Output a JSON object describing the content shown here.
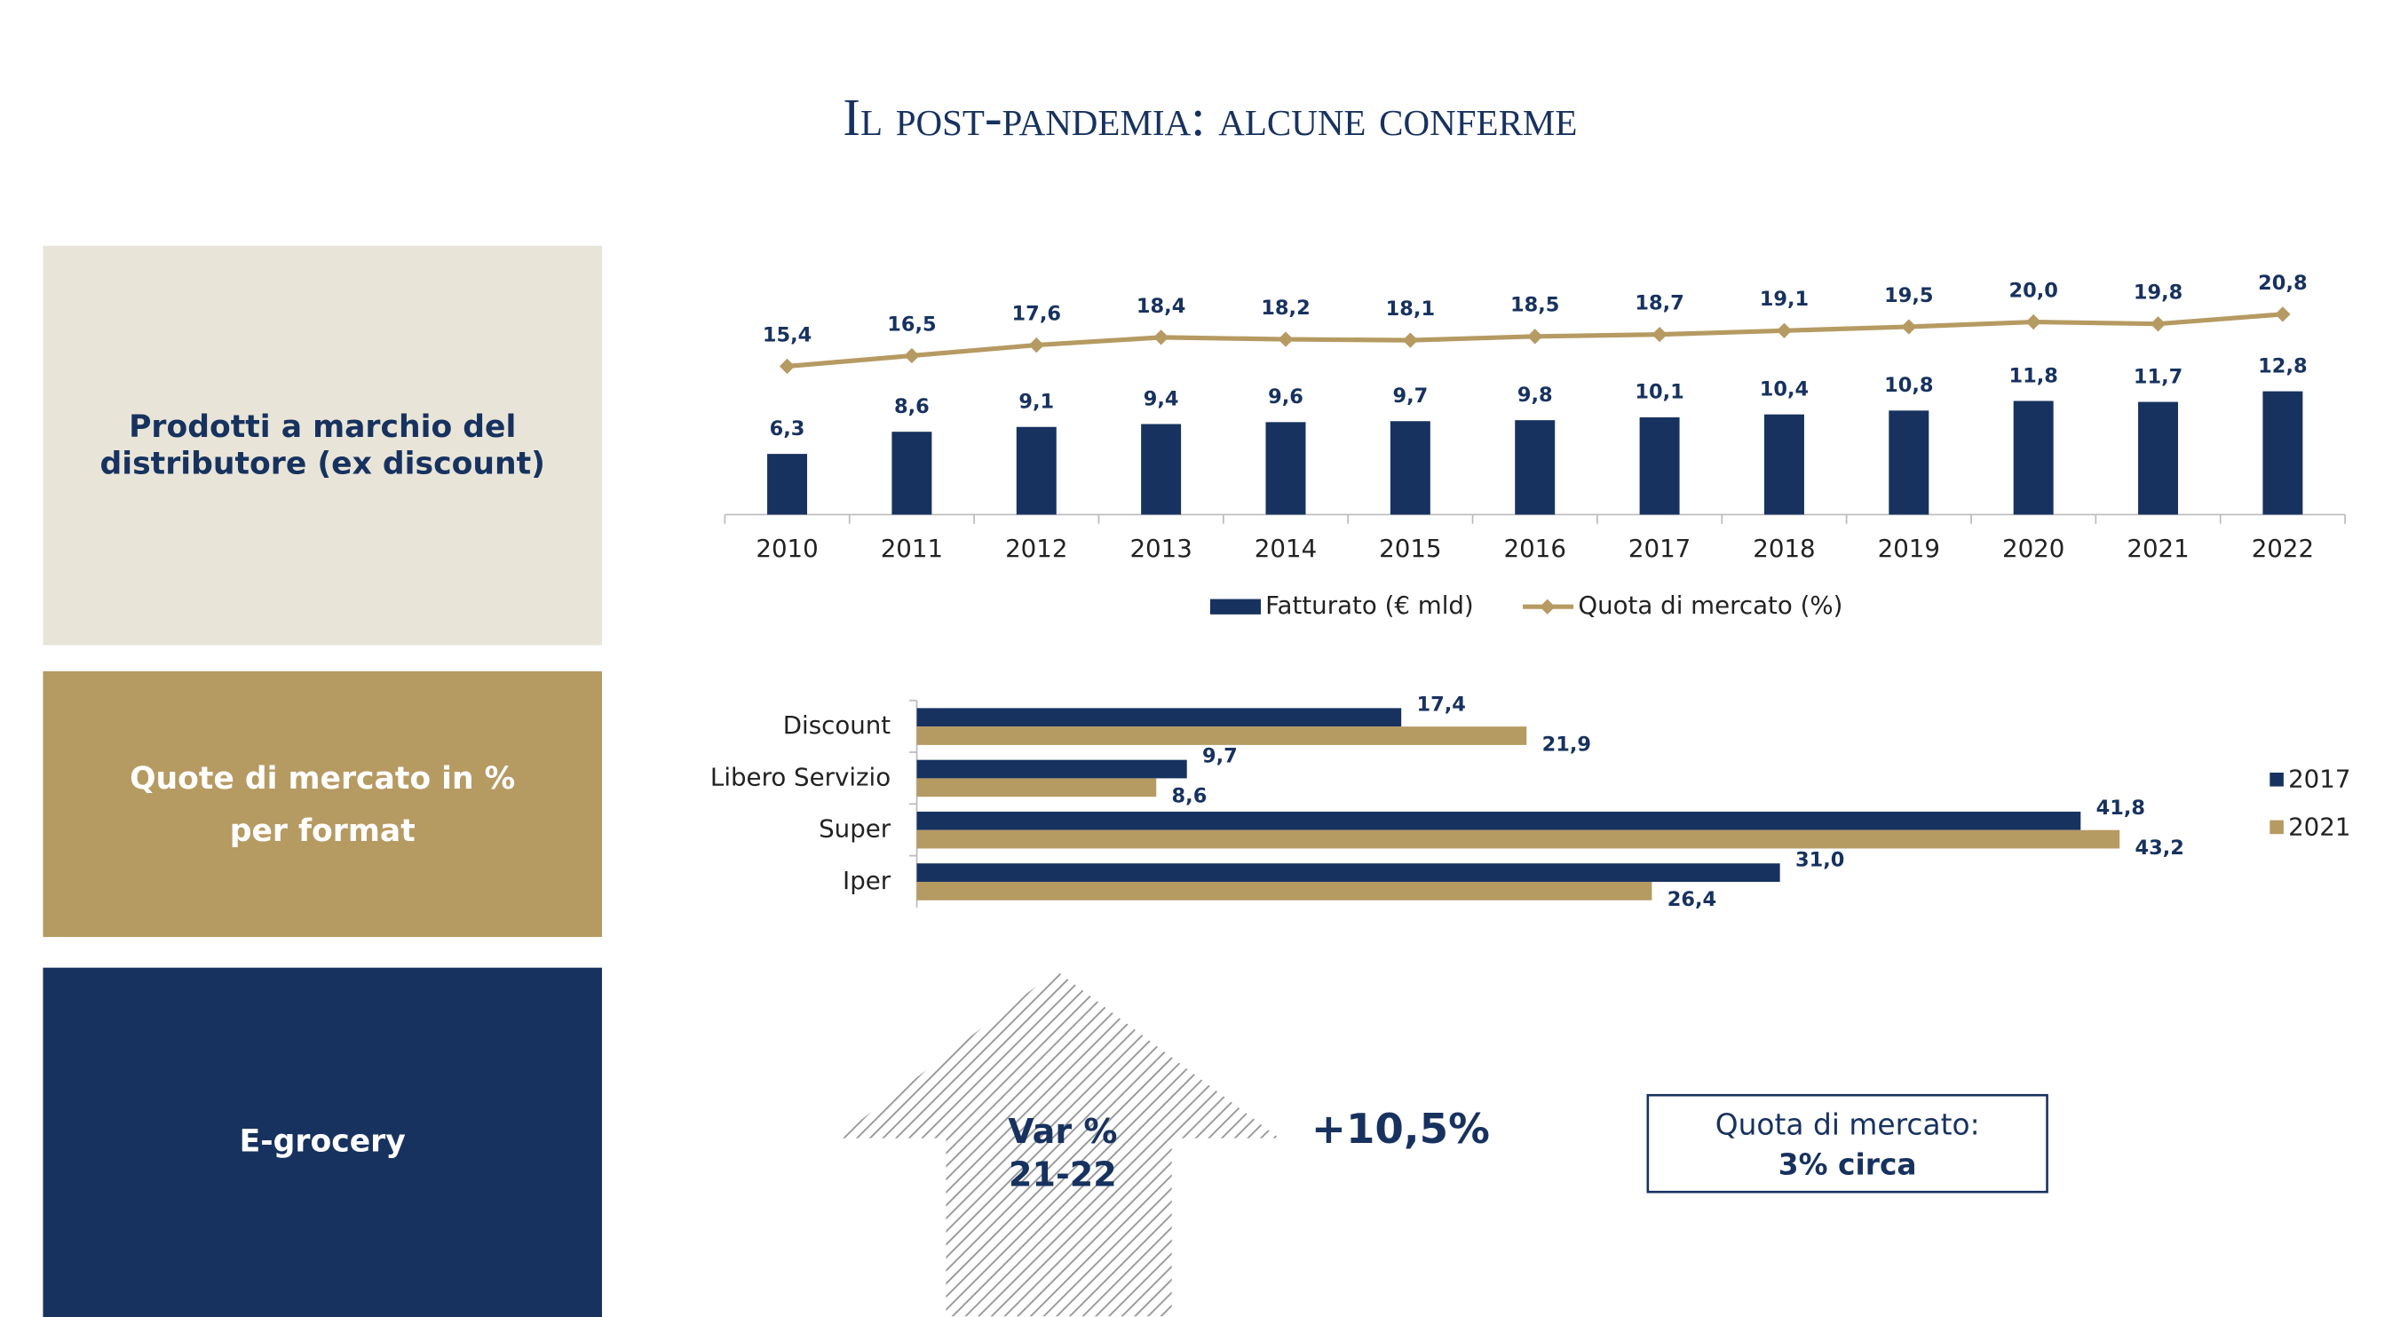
{
  "title": "Il post-pandemia: alcune conferme",
  "panels": [
    {
      "lines": [
        "Prodotti a marchio del",
        "distributore (ex discount)"
      ]
    },
    {
      "lines": [
        "Quote di mercato in %",
        "per format"
      ]
    },
    {
      "lines": [
        "E-grocery"
      ]
    }
  ],
  "chart_data": [
    {
      "type": "combo",
      "categories": [
        "2010",
        "2011",
        "2012",
        "2013",
        "2014",
        "2015",
        "2016",
        "2017",
        "2018",
        "2019",
        "2020",
        "2021",
        "2022"
      ],
      "series": [
        {
          "name": "Fatturato (€ mld)",
          "type": "bar",
          "color": "#17325f",
          "values": [
            6.3,
            8.6,
            9.1,
            9.4,
            9.6,
            9.7,
            9.8,
            10.1,
            10.4,
            10.8,
            11.8,
            11.7,
            12.8
          ],
          "value_labels": [
            "6,3",
            "8,6",
            "9,1",
            "9,4",
            "9,6",
            "9,7",
            "9,8",
            "10,1",
            "10,4",
            "10,8",
            "11,8",
            "11,7",
            "12,8"
          ]
        },
        {
          "name": "Quota di mercato (%)",
          "type": "line",
          "color": "#b59a62",
          "values": [
            15.4,
            16.5,
            17.6,
            18.4,
            18.2,
            18.1,
            18.5,
            18.7,
            19.1,
            19.5,
            20.0,
            19.8,
            20.8
          ],
          "value_labels": [
            "15,4",
            "16,5",
            "17,6",
            "18,4",
            "18,2",
            "18,1",
            "18,5",
            "18,7",
            "19,1",
            "19,5",
            "20,0",
            "19,8",
            "20,8"
          ]
        }
      ],
      "legend": "bottom"
    },
    {
      "type": "hbar",
      "categories": [
        "Discount",
        "Libero Servizio",
        "Super",
        "Iper"
      ],
      "series": [
        {
          "name": "2017",
          "color": "#17325f",
          "values": [
            17.4,
            9.7,
            41.8,
            31.0
          ],
          "value_labels": [
            "17,4",
            "9,7",
            "41,8",
            "31,0"
          ]
        },
        {
          "name": "2021",
          "color": "#b59a62",
          "values": [
            21.9,
            8.6,
            43.2,
            26.4
          ],
          "value_labels": [
            "21,9",
            "8,6",
            "43,2",
            "26,4"
          ]
        }
      ],
      "legend": "right"
    }
  ],
  "egrocery": {
    "arrow_lines": [
      "Var %",
      "21-22"
    ],
    "change": "+10,5%",
    "box_lines": [
      "Quota di mercato:",
      "3% circa"
    ]
  }
}
